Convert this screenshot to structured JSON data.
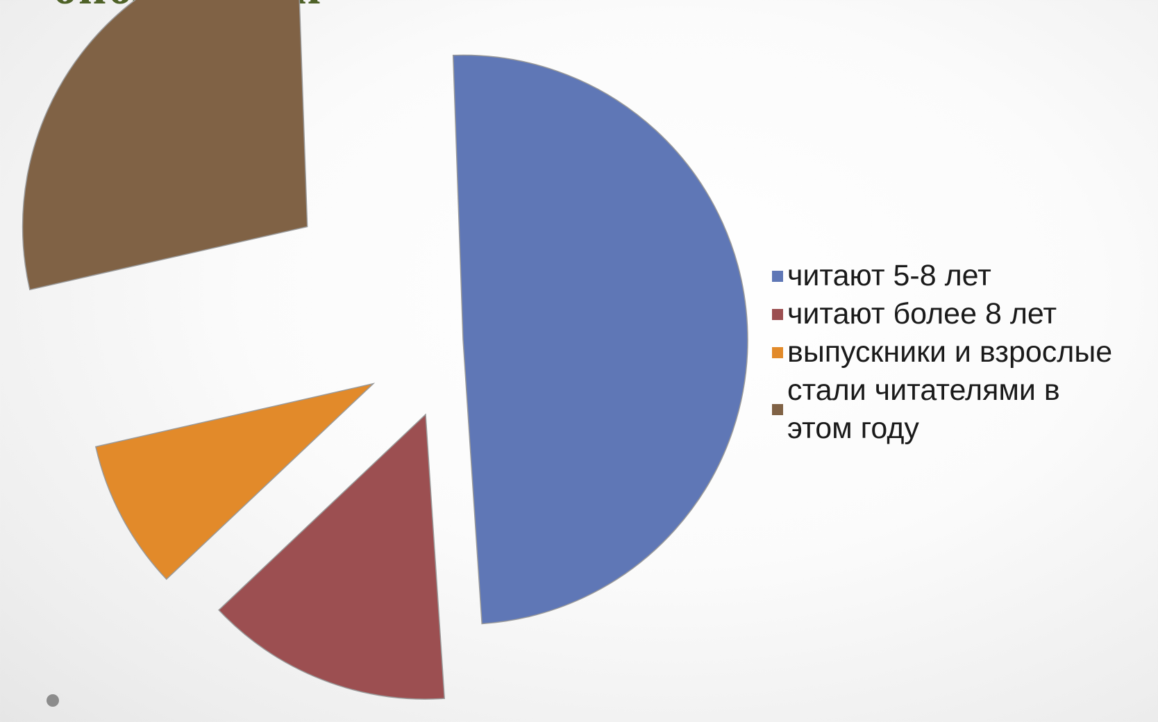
{
  "slide": {
    "title": "библиотеки"
  },
  "chart_data": {
    "type": "pie",
    "categories": [
      "читают 5-8 лет",
      "читают более 8 лет",
      "выпускники и взрослые",
      "стали читателями в этом году"
    ],
    "values": [
      49.5,
      14,
      8.5,
      28
    ],
    "colors": [
      "#5f77b6",
      "#9c4f51",
      "#e28a2a",
      "#806245"
    ],
    "exploded": true,
    "legend_position": "right",
    "data_labels": false
  }
}
